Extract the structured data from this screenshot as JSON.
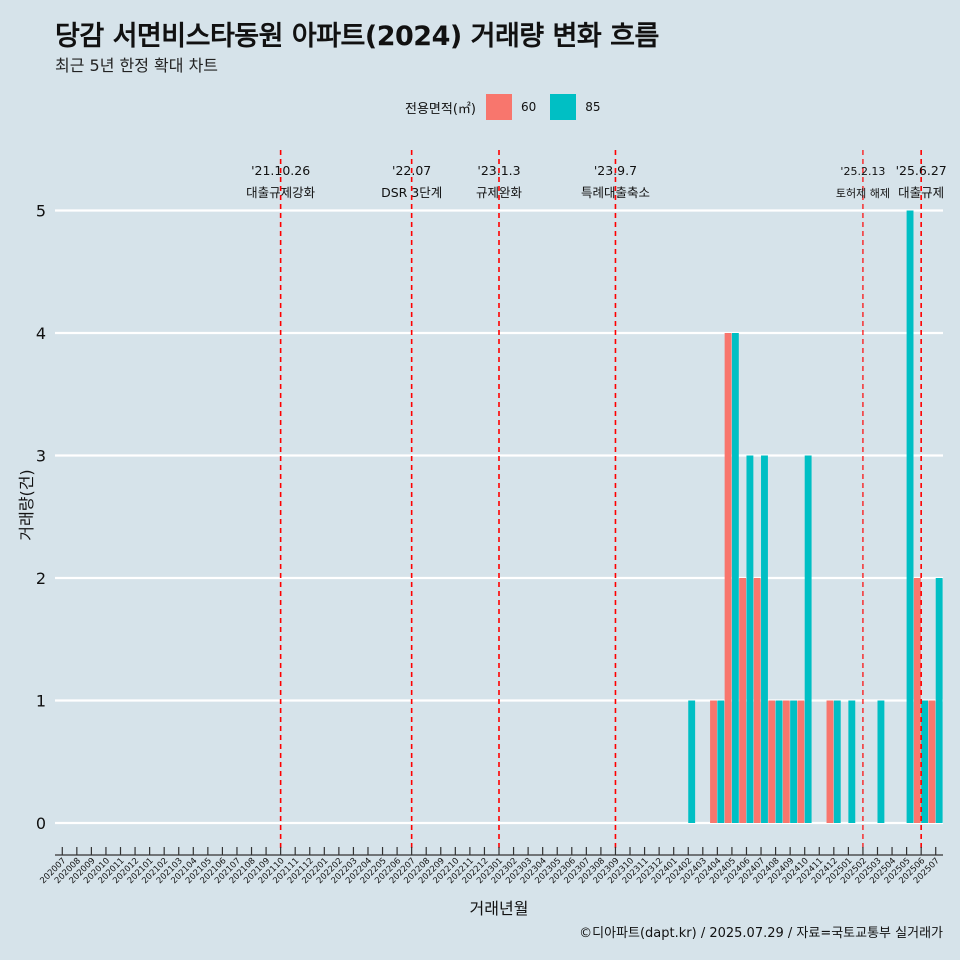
{
  "title": "당감 서면비스타동원 아파트(2024) 거래량 변화 흐름",
  "subtitle": "최근 5년 한정 확대 차트",
  "caption": "©디아파트(dapt.kr) / 2025.07.29 / 자료=국토교통부 실거래가",
  "legend": {
    "title": "전용면적(㎡)"
  },
  "colors": {
    "background": "#d6e3ea",
    "series_60": "#f8766d",
    "series_85": "#00bfc4",
    "event_line": "#ff0000",
    "grid": "#ffffff"
  },
  "chart_data": {
    "type": "bar",
    "xlabel": "거래년월",
    "ylabel": "거래량(건)",
    "ylim": [
      0,
      5
    ],
    "y_ticks": [
      0,
      1,
      2,
      3,
      4,
      5
    ],
    "grid": true,
    "legend_position": "top",
    "categories": [
      "202007",
      "202008",
      "202009",
      "202010",
      "202011",
      "202012",
      "202101",
      "202102",
      "202103",
      "202104",
      "202105",
      "202106",
      "202107",
      "202108",
      "202109",
      "202110",
      "202111",
      "202112",
      "202201",
      "202202",
      "202203",
      "202204",
      "202205",
      "202206",
      "202207",
      "202208",
      "202209",
      "202210",
      "202211",
      "202212",
      "202301",
      "202302",
      "202303",
      "202304",
      "202305",
      "202306",
      "202307",
      "202308",
      "202309",
      "202310",
      "202311",
      "202312",
      "202401",
      "202402",
      "202403",
      "202404",
      "202405",
      "202406",
      "202407",
      "202408",
      "202409",
      "202410",
      "202411",
      "202412",
      "202501",
      "202502",
      "202503",
      "202504",
      "202505",
      "202506",
      "202507"
    ],
    "series": [
      {
        "name": "60",
        "values": [
          0,
          0,
          0,
          0,
          0,
          0,
          0,
          0,
          0,
          0,
          0,
          0,
          0,
          0,
          0,
          0,
          0,
          0,
          0,
          0,
          0,
          0,
          0,
          0,
          0,
          0,
          0,
          0,
          0,
          0,
          0,
          0,
          0,
          0,
          0,
          0,
          0,
          0,
          0,
          0,
          0,
          0,
          0,
          0,
          0,
          1,
          4,
          2,
          2,
          1,
          1,
          1,
          0,
          1,
          0,
          0,
          0,
          0,
          0,
          2,
          1
        ]
      },
      {
        "name": "85",
        "values": [
          0,
          0,
          0,
          0,
          0,
          0,
          0,
          0,
          0,
          0,
          0,
          0,
          0,
          0,
          0,
          0,
          0,
          0,
          0,
          0,
          0,
          0,
          0,
          0,
          0,
          0,
          0,
          0,
          0,
          0,
          0,
          0,
          0,
          0,
          0,
          0,
          0,
          0,
          0,
          0,
          0,
          0,
          0,
          1,
          0,
          1,
          4,
          3,
          3,
          1,
          1,
          3,
          0,
          1,
          1,
          0,
          1,
          0,
          5,
          1,
          2
        ]
      }
    ],
    "annotations": [
      {
        "at": "202110",
        "date": "'21.10.26",
        "label": "대출규제강화",
        "small": false
      },
      {
        "at": "202207",
        "date": "'22.07",
        "label": "DSR 3단계",
        "small": false
      },
      {
        "at": "202301",
        "date": "'23.1.3",
        "label": "규제완화",
        "small": false
      },
      {
        "at": "202309",
        "date": "'23.9.7",
        "label": "특례대출축소",
        "small": false
      },
      {
        "at": "202502",
        "date": "'25.2.13",
        "label": "토허제 해제",
        "small": true
      },
      {
        "at": "202506",
        "date": "'25.6.27",
        "label": "대출규제",
        "small": false
      }
    ]
  }
}
